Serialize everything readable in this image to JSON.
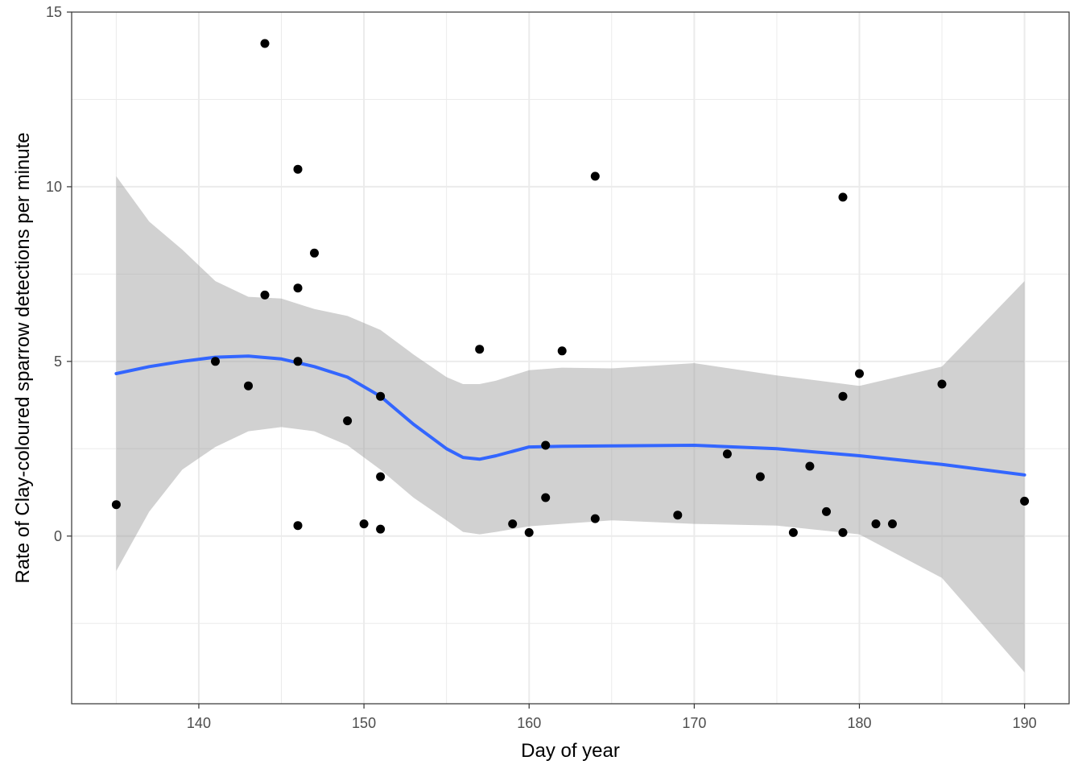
{
  "chart_data": {
    "type": "scatter",
    "title": "",
    "xlabel": "Day of year",
    "ylabel": "Rate of Clay-coloured sparrow detections per minute",
    "xlim": [
      132.3,
      192.7
    ],
    "ylim": [
      -4.8,
      15
    ],
    "x_ticks": [
      140,
      150,
      160,
      170,
      180,
      190
    ],
    "x_tick_labels": [
      "140",
      "150",
      "160",
      "170",
      "180",
      "190"
    ],
    "y_ticks": [
      0,
      5,
      10,
      15
    ],
    "y_tick_labels": [
      "0",
      "5",
      "10",
      "15"
    ],
    "grid": true,
    "theme": "bw",
    "colors": {
      "points": "#000000",
      "smooth_line": "#3366FF",
      "confidence_band": "#999999",
      "grid": "#EBEBEB",
      "panel_border": "#333333"
    },
    "points": [
      {
        "x": 135,
        "y": 0.9
      },
      {
        "x": 141,
        "y": 5.0
      },
      {
        "x": 143,
        "y": 4.3
      },
      {
        "x": 144,
        "y": 14.1
      },
      {
        "x": 144,
        "y": 6.9
      },
      {
        "x": 146,
        "y": 10.5
      },
      {
        "x": 146,
        "y": 7.1
      },
      {
        "x": 146,
        "y": 5.0
      },
      {
        "x": 146,
        "y": 0.3
      },
      {
        "x": 147,
        "y": 8.1
      },
      {
        "x": 149,
        "y": 3.3
      },
      {
        "x": 150,
        "y": 0.35
      },
      {
        "x": 151,
        "y": 4.0
      },
      {
        "x": 151,
        "y": 1.7
      },
      {
        "x": 151,
        "y": 0.2
      },
      {
        "x": 157,
        "y": 5.35
      },
      {
        "x": 159,
        "y": 0.35
      },
      {
        "x": 160,
        "y": 0.1
      },
      {
        "x": 161,
        "y": 2.6
      },
      {
        "x": 161,
        "y": 1.1
      },
      {
        "x": 162,
        "y": 5.3
      },
      {
        "x": 164,
        "y": 10.3
      },
      {
        "x": 164,
        "y": 0.5
      },
      {
        "x": 169,
        "y": 0.6
      },
      {
        "x": 172,
        "y": 2.35
      },
      {
        "x": 174,
        "y": 1.7
      },
      {
        "x": 176,
        "y": 0.1
      },
      {
        "x": 177,
        "y": 2.0
      },
      {
        "x": 178,
        "y": 0.7
      },
      {
        "x": 179,
        "y": 9.7
      },
      {
        "x": 179,
        "y": 4.0
      },
      {
        "x": 179,
        "y": 0.1
      },
      {
        "x": 180,
        "y": 4.65
      },
      {
        "x": 181,
        "y": 0.35
      },
      {
        "x": 182,
        "y": 0.35
      },
      {
        "x": 185,
        "y": 4.35
      },
      {
        "x": 190,
        "y": 1.0
      }
    ],
    "smooth": {
      "x": [
        135,
        137,
        139,
        141,
        143,
        145,
        147,
        149,
        151,
        153,
        155,
        156,
        157,
        158,
        160,
        162,
        165,
        170,
        175,
        180,
        185,
        190
      ],
      "y": [
        4.65,
        4.85,
        5.0,
        5.12,
        5.15,
        5.07,
        4.85,
        4.55,
        4.0,
        3.2,
        2.5,
        2.25,
        2.2,
        2.3,
        2.55,
        2.57,
        2.58,
        2.6,
        2.5,
        2.3,
        2.05,
        1.75
      ],
      "lower": [
        -1.0,
        0.7,
        1.9,
        2.55,
        3.0,
        3.12,
        3.0,
        2.6,
        1.9,
        1.1,
        0.45,
        0.12,
        0.05,
        0.12,
        0.28,
        0.35,
        0.45,
        0.35,
        0.3,
        0.05,
        -1.2,
        -3.9
      ],
      "upper": [
        10.3,
        9.0,
        8.2,
        7.3,
        6.85,
        6.8,
        6.5,
        6.3,
        5.9,
        5.2,
        4.55,
        4.35,
        4.35,
        4.45,
        4.75,
        4.82,
        4.8,
        4.95,
        4.6,
        4.3,
        4.85,
        7.3
      ]
    }
  }
}
